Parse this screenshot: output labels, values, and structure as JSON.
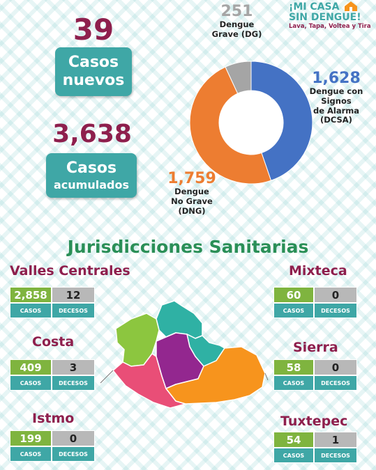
{
  "brand": {
    "line1": "¡MI CASA",
    "line2": "SIN DENGUE!",
    "tagline": "Lava, Tapa, Voltea y Tira"
  },
  "cases_new": {
    "value": "39",
    "label_line1": "Casos",
    "label_line2": "nuevos"
  },
  "cases_total": {
    "value": "3,638",
    "label_line1": "Casos",
    "label_line2": "acumulados"
  },
  "chart_data": {
    "type": "pie",
    "categories": [
      "Dengue con Signos de Alarma (DCSA)",
      "Dengue No Grave (DNG)",
      "Dengue Grave (DG)"
    ],
    "values": [
      1628,
      1759,
      251
    ],
    "colors": [
      "#4472c4",
      "#ed7d31",
      "#a5a5a5"
    ],
    "labels": [
      {
        "num": "1,628",
        "text_lines": [
          "Dengue con",
          "Signos",
          "de Alarma",
          "(DCSA)"
        ],
        "color": "#4472c4"
      },
      {
        "num": "1,759",
        "text_lines": [
          "Dengue",
          "No Grave",
          "(DNG)"
        ],
        "color": "#ed7d31"
      },
      {
        "num": "251",
        "text_lines": [
          "Dengue",
          "Grave (DG)"
        ],
        "color": "#a5a5a5"
      }
    ]
  },
  "section_title": "Jurisdicciones Sanitarias",
  "stat_labels": {
    "cases": "CASOS",
    "deaths": "DECESOS"
  },
  "jurisdictions": [
    {
      "name": "Valles Centrales",
      "cases": "2,858",
      "deaths": "12"
    },
    {
      "name": "Costa",
      "cases": "409",
      "deaths": "3"
    },
    {
      "name": "Istmo",
      "cases": "199",
      "deaths": "0"
    },
    {
      "name": "Mixteca",
      "cases": "60",
      "deaths": "0"
    },
    {
      "name": "Sierra",
      "cases": "58",
      "deaths": "0"
    },
    {
      "name": "Tuxtepec",
      "cases": "54",
      "deaths": "1"
    }
  ],
  "map_colors": {
    "mixteca": "#8cc63f",
    "tuxtepec": "#2fb1a4",
    "sierra": "#2fb1a4",
    "valles": "#93278f",
    "costa": "#e94e77",
    "istmo": "#f7941d"
  }
}
